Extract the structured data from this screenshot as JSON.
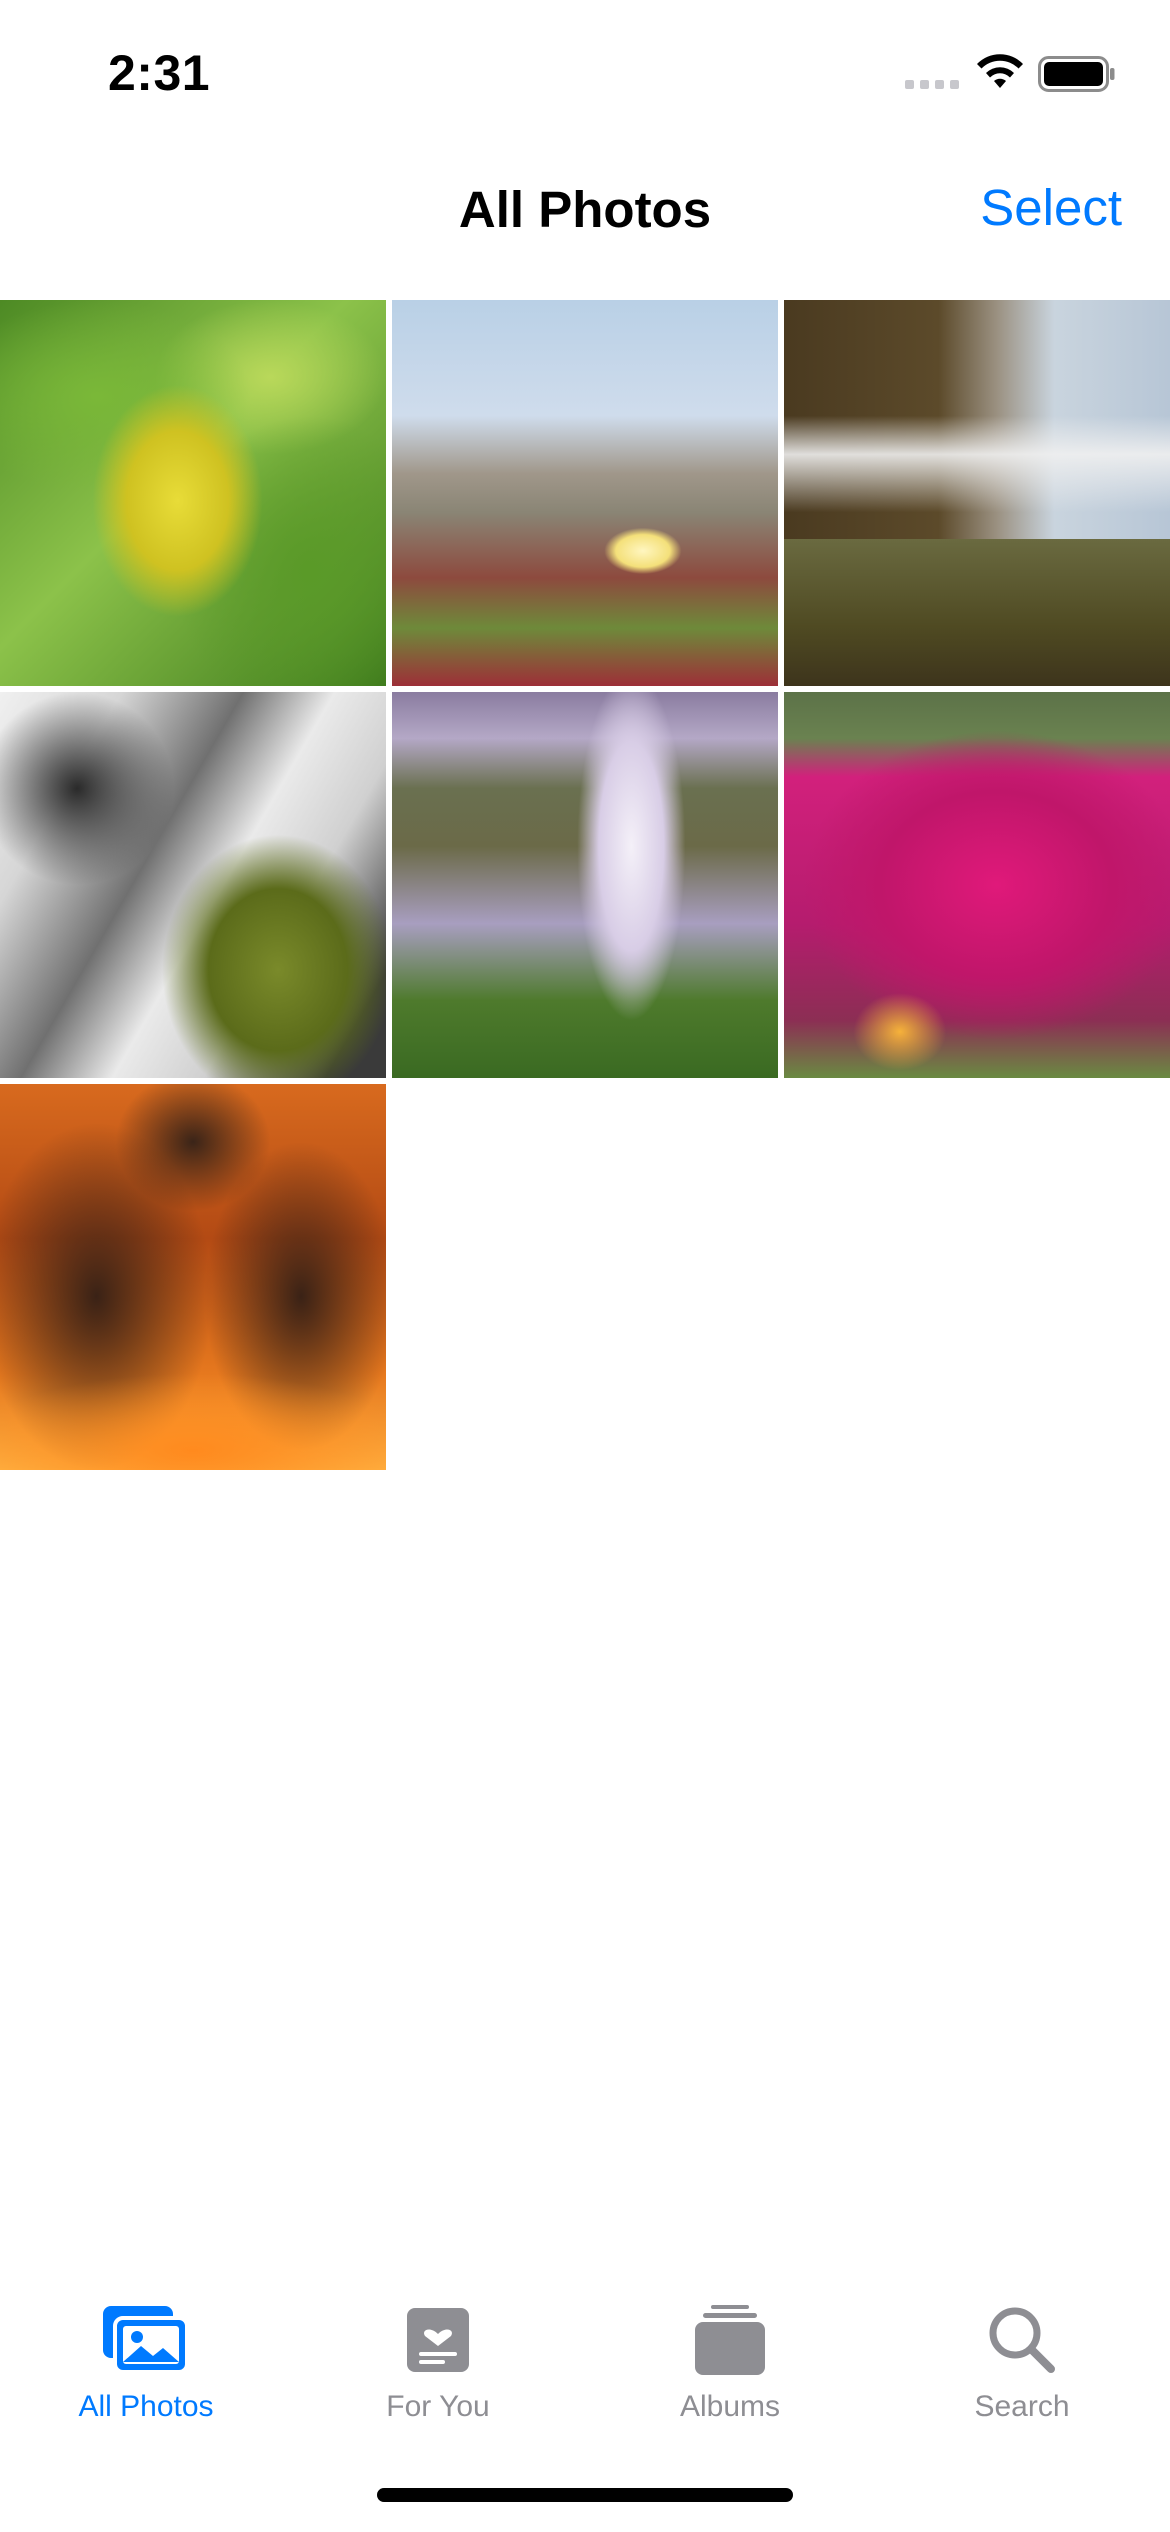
{
  "status_bar": {
    "time": "2:31"
  },
  "nav": {
    "title": "All Photos",
    "select_label": "Select"
  },
  "photos": [
    {
      "subject": "green leaves with yellow leaf"
    },
    {
      "subject": "yellow flower on coast"
    },
    {
      "subject": "waterfall over rocks"
    },
    {
      "subject": "long exposure waterfall with moss"
    },
    {
      "subject": "tall waterfall in misty valley"
    },
    {
      "subject": "magenta flower field"
    },
    {
      "subject": "movie poster"
    }
  ],
  "tab_bar": {
    "tabs": [
      {
        "label": "All Photos",
        "icon": "photos-icon",
        "active": true
      },
      {
        "label": "For You",
        "icon": "for-you-icon",
        "active": false
      },
      {
        "label": "Albums",
        "icon": "albums-icon",
        "active": false
      },
      {
        "label": "Search",
        "icon": "search-icon",
        "active": false
      }
    ]
  },
  "colors": {
    "accent": "#007aff",
    "inactive": "#8e8e93"
  }
}
